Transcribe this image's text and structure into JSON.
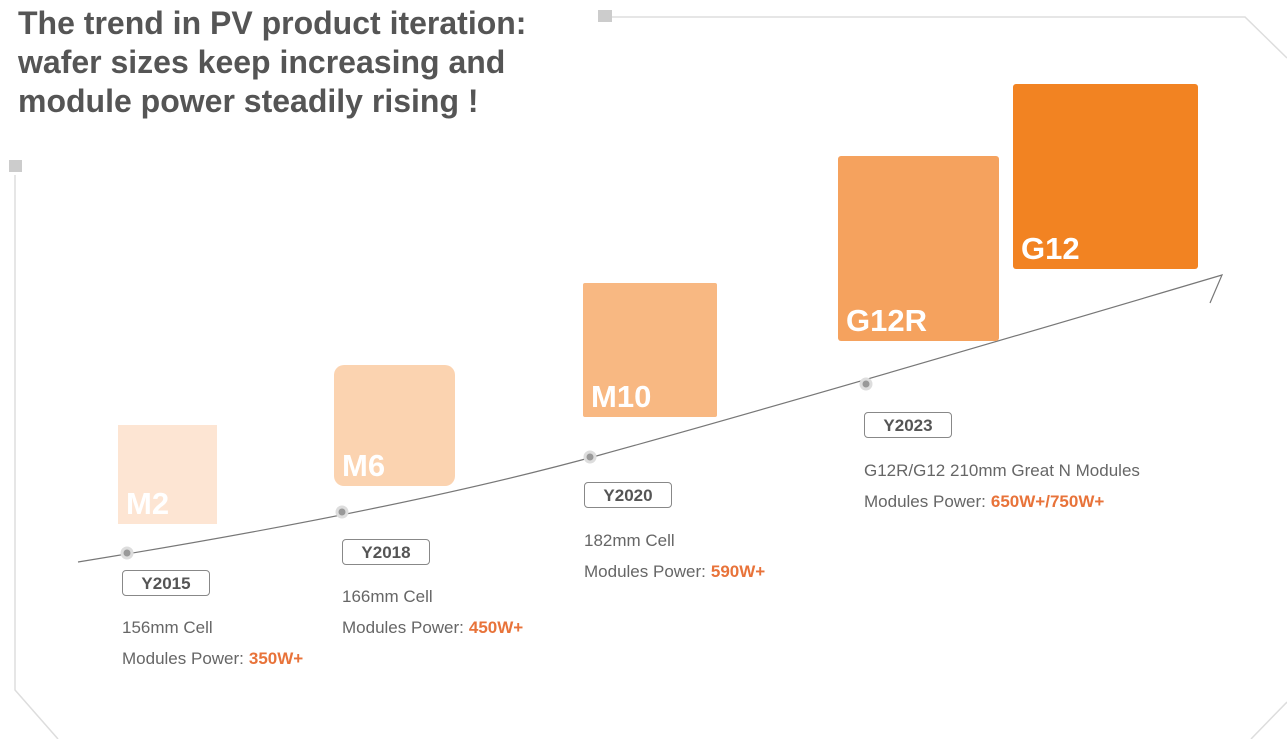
{
  "title": [
    "The trend in PV product iteration:",
    "wafer sizes keep increasing and",
    "module power steadily rising !"
  ],
  "wafers": [
    "M2",
    "M6",
    "M10",
    "G12R",
    "G12"
  ],
  "milestones": [
    {
      "year": "Y2015",
      "cell": "156mm Cell",
      "power_label": "Modules Power:",
      "power": "350W+"
    },
    {
      "year": "Y2018",
      "cell": "166mm Cell",
      "power_label": "Modules Power:",
      "power": "450W+"
    },
    {
      "year": "Y2020",
      "cell": "182mm Cell",
      "power_label": "Modules Power:",
      "power": "590W+"
    },
    {
      "year": "Y2023",
      "cell": "G12R/G12 210mm Great N Modules",
      "power_label": "Modules Power:",
      "power": "650W+/750W+"
    }
  ]
}
